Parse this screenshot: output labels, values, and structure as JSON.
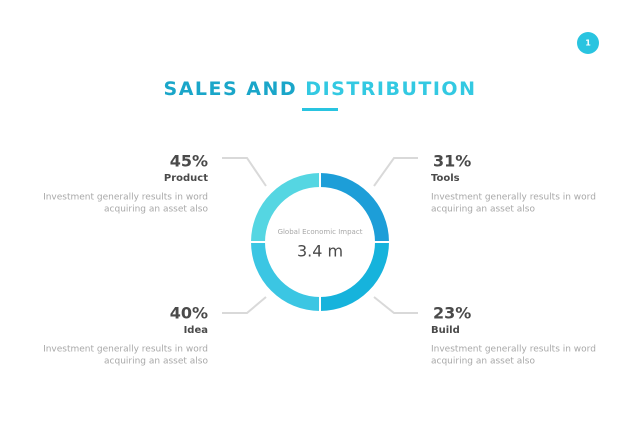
{
  "page_number": "1",
  "title": {
    "first": "SALES AND",
    "second": "DISTRIBUTION"
  },
  "center": {
    "label": "Global Economic Impact",
    "value": "3.4 m"
  },
  "items": [
    {
      "percent": "45%",
      "label": "Product",
      "description": [
        "Investment generally results in word",
        "acquiring an asset also"
      ]
    },
    {
      "percent": "31%",
      "label": "Tools",
      "description": [
        "Investment generally results in word",
        "acquiring an asset also"
      ]
    },
    {
      "percent": "40%",
      "label": "Idea",
      "description": [
        "Investment generally results in word",
        "acquiring an asset also"
      ]
    },
    {
      "percent": "23%",
      "label": "Build",
      "description": [
        "Investment generally results in word",
        "acquiring an asset also"
      ]
    }
  ]
}
